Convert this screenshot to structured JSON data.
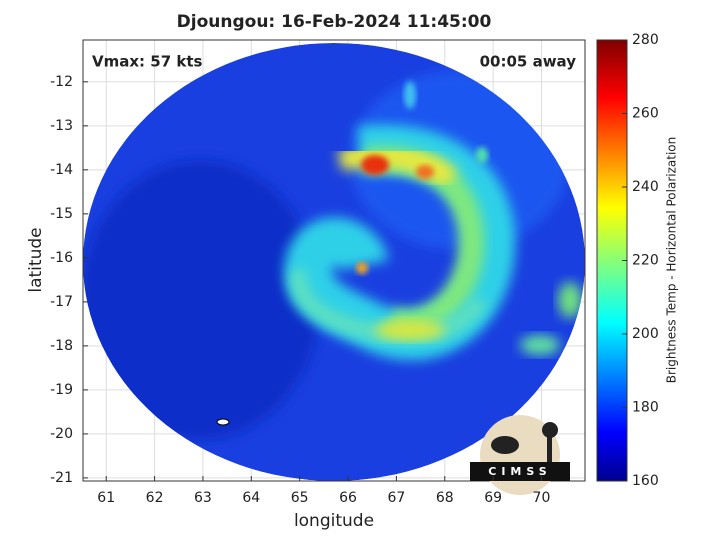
{
  "chart_data": {
    "type": "map",
    "title": "Djoungou: 16-Feb-2024 11:45:00",
    "annotations": [
      "Vmax: 57 kts",
      "00:05 away"
    ],
    "xlabel": "longitude",
    "ylabel": "latitude",
    "xlim": [
      60.52,
      70.9
    ],
    "xticks": [
      61,
      62,
      63,
      64,
      65,
      66,
      67,
      68,
      69,
      70
    ],
    "ylim": [
      -21.07,
      -11.05
    ],
    "yticks": [
      -21,
      -20,
      -19,
      -18,
      -17,
      -16,
      -15,
      -14,
      -13,
      -12
    ],
    "grid": true,
    "colorbar": {
      "label": "Brightness Temp - Horizontal Polarization",
      "lim": [
        160,
        280
      ],
      "ticks": [
        160,
        180,
        200,
        220,
        240,
        260,
        280
      ],
      "colormap": "jet"
    },
    "logo": "CIMSS"
  }
}
